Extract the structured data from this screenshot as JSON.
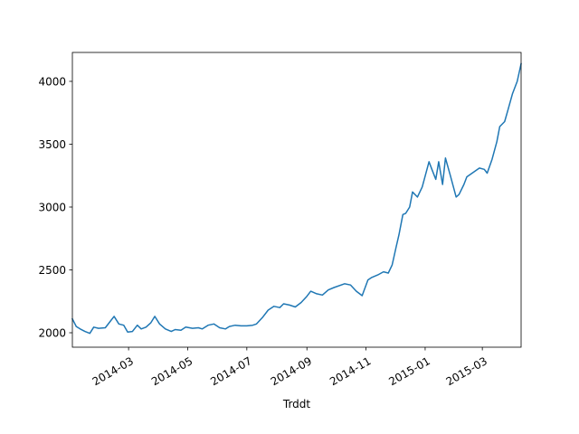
{
  "chart_data": {
    "type": "line",
    "title": "",
    "xlabel": "Trddt",
    "ylabel": "",
    "x_type": "date",
    "xlim": [
      "2014-01-02",
      "2015-04-10"
    ],
    "ylim": [
      1885,
      4230
    ],
    "grid": false,
    "line_color": "#1f77b4",
    "x_ticks": [
      {
        "date": "2014-03-01",
        "label": "2014-03"
      },
      {
        "date": "2014-05-01",
        "label": "2014-05"
      },
      {
        "date": "2014-07-01",
        "label": "2014-07"
      },
      {
        "date": "2014-09-01",
        "label": "2014-09"
      },
      {
        "date": "2014-11-01",
        "label": "2014-11"
      },
      {
        "date": "2015-01-01",
        "label": "2015-01"
      },
      {
        "date": "2015-03-01",
        "label": "2015-03"
      }
    ],
    "y_ticks": [
      {
        "value": 2000,
        "label": "2000"
      },
      {
        "value": 2500,
        "label": "2500"
      },
      {
        "value": 3000,
        "label": "3000"
      },
      {
        "value": 3500,
        "label": "3500"
      },
      {
        "value": 4000,
        "label": "4000"
      }
    ],
    "series": [
      {
        "x": [
          "2014-01-02",
          "2014-01-06",
          "2014-01-10",
          "2014-01-15",
          "2014-01-20",
          "2014-01-24",
          "2014-01-29",
          "2014-02-05",
          "2014-02-10",
          "2014-02-14",
          "2014-02-19",
          "2014-02-24",
          "2014-02-28",
          "2014-03-05",
          "2014-03-10",
          "2014-03-14",
          "2014-03-19",
          "2014-03-24",
          "2014-03-28",
          "2014-04-02",
          "2014-04-08",
          "2014-04-14",
          "2014-04-18",
          "2014-04-24",
          "2014-04-29",
          "2014-05-06",
          "2014-05-12",
          "2014-05-16",
          "2014-05-22",
          "2014-05-28",
          "2014-06-03",
          "2014-06-09",
          "2014-06-13",
          "2014-06-19",
          "2014-06-25",
          "2014-07-01",
          "2014-07-07",
          "2014-07-11",
          "2014-07-17",
          "2014-07-23",
          "2014-07-29",
          "2014-08-04",
          "2014-08-08",
          "2014-08-14",
          "2014-08-20",
          "2014-08-26",
          "2014-09-01",
          "2014-09-05",
          "2014-09-11",
          "2014-09-17",
          "2014-09-23",
          "2014-09-29",
          "2014-10-10",
          "2014-10-16",
          "2014-10-22",
          "2014-10-28",
          "2014-11-03",
          "2014-11-07",
          "2014-11-13",
          "2014-11-19",
          "2014-11-24",
          "2014-11-28",
          "2014-12-02",
          "2014-12-05",
          "2014-12-09",
          "2014-12-12",
          "2014-12-16",
          "2014-12-19",
          "2014-12-24",
          "2014-12-29",
          "2015-01-05",
          "2015-01-08",
          "2015-01-12",
          "2015-01-15",
          "2015-01-19",
          "2015-01-22",
          "2015-01-27",
          "2015-02-02",
          "2015-02-05",
          "2015-02-10",
          "2015-02-13",
          "2015-02-26",
          "2015-03-03",
          "2015-03-06",
          "2015-03-11",
          "2015-03-16",
          "2015-03-19",
          "2015-03-24",
          "2015-03-27",
          "2015-04-01",
          "2015-04-06",
          "2015-04-10"
        ],
        "values": [
          2110,
          2050,
          2030,
          2010,
          1995,
          2045,
          2035,
          2040,
          2090,
          2130,
          2070,
          2060,
          2005,
          2010,
          2060,
          2030,
          2045,
          2080,
          2130,
          2070,
          2030,
          2010,
          2025,
          2020,
          2045,
          2035,
          2040,
          2030,
          2060,
          2070,
          2040,
          2030,
          2050,
          2060,
          2055,
          2055,
          2060,
          2070,
          2120,
          2180,
          2210,
          2200,
          2230,
          2220,
          2205,
          2240,
          2290,
          2330,
          2310,
          2300,
          2340,
          2360,
          2390,
          2380,
          2330,
          2295,
          2420,
          2440,
          2460,
          2485,
          2475,
          2540,
          2680,
          2780,
          2940,
          2950,
          3000,
          3120,
          3080,
          3160,
          3360,
          3300,
          3220,
          3360,
          3180,
          3390,
          3250,
          3080,
          3100,
          3180,
          3240,
          3310,
          3300,
          3270,
          3380,
          3520,
          3640,
          3680,
          3760,
          3900,
          4000,
          4140
        ]
      }
    ]
  }
}
